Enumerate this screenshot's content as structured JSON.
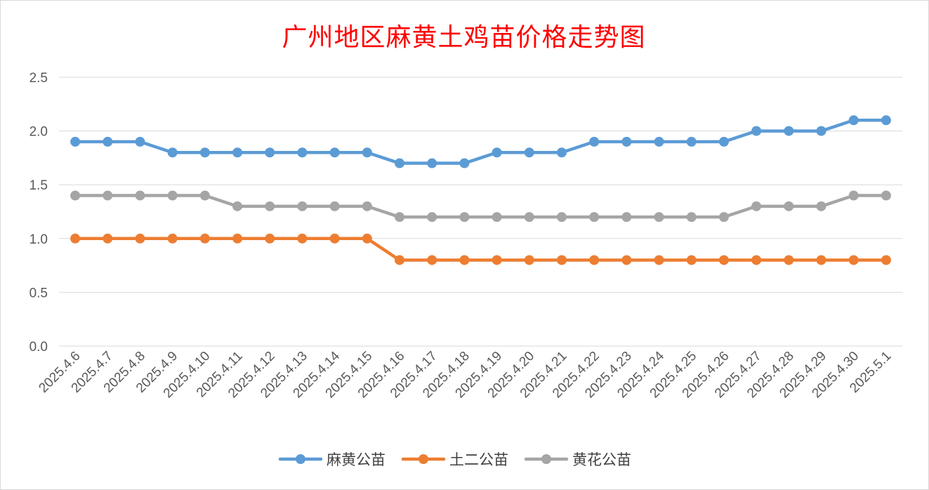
{
  "chart_data": {
    "type": "line",
    "title": "广州地区麻黄土鸡苗价格走势图",
    "title_color": "#ff0000",
    "xlabel": "",
    "ylabel": "",
    "ylim": [
      0,
      2.5
    ],
    "yticks": [
      "0.0",
      "0.5",
      "1.0",
      "1.5",
      "2.0",
      "2.5"
    ],
    "grid": true,
    "legend_position": "bottom",
    "categories": [
      "2025.4.6",
      "2025.4.7",
      "2025.4.8",
      "2025.4.9",
      "2025.4.10",
      "2025.4.11",
      "2025.4.12",
      "2025.4.13",
      "2025.4.14",
      "2025.4.15",
      "2025.4.16",
      "2025.4.17",
      "2025.4.18",
      "2025.4.19",
      "2025.4.20",
      "2025.4.21",
      "2025.4.22",
      "2025.4.23",
      "2025.4.24",
      "2025.4.25",
      "2025.4.26",
      "2025.4.27",
      "2025.4.28",
      "2025.4.29",
      "2025.4.30",
      "2025.5.1"
    ],
    "series": [
      {
        "name": "麻黄公苗",
        "color": "#5b9bd5",
        "values": [
          1.9,
          1.9,
          1.9,
          1.8,
          1.8,
          1.8,
          1.8,
          1.8,
          1.8,
          1.8,
          1.7,
          1.7,
          1.7,
          1.8,
          1.8,
          1.8,
          1.9,
          1.9,
          1.9,
          1.9,
          1.9,
          2.0,
          2.0,
          2.0,
          2.1,
          2.1
        ]
      },
      {
        "name": "土二公苗",
        "color": "#ed7d31",
        "values": [
          1.0,
          1.0,
          1.0,
          1.0,
          1.0,
          1.0,
          1.0,
          1.0,
          1.0,
          1.0,
          0.8,
          0.8,
          0.8,
          0.8,
          0.8,
          0.8,
          0.8,
          0.8,
          0.8,
          0.8,
          0.8,
          0.8,
          0.8,
          0.8,
          0.8,
          0.8
        ]
      },
      {
        "name": "黄花公苗",
        "color": "#a5a5a5",
        "values": [
          1.4,
          1.4,
          1.4,
          1.4,
          1.4,
          1.3,
          1.3,
          1.3,
          1.3,
          1.3,
          1.2,
          1.2,
          1.2,
          1.2,
          1.2,
          1.2,
          1.2,
          1.2,
          1.2,
          1.2,
          1.2,
          1.3,
          1.3,
          1.3,
          1.4,
          1.4
        ]
      }
    ]
  }
}
